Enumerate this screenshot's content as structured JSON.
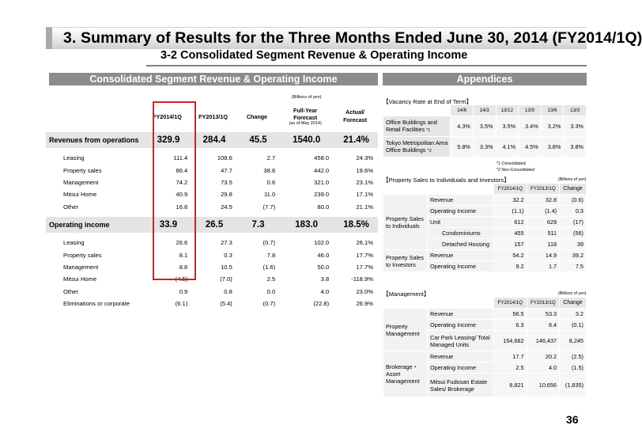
{
  "title": "3. Summary of Results for the Three Months Ended June 30, 2014 (FY2014/1Q)",
  "subtitle": "3-2  Consolidated Segment Revenue & Operating Income",
  "left": {
    "header": "Consolidated Segment Revenue & Operating Income",
    "unit": "(Billions of yen)",
    "columns": [
      "FY2014/1Q",
      "FY2013/1Q",
      "Change",
      "Full-Year Forecast",
      "(as of May 2014)",
      "Actual/ Forecast"
    ],
    "rows": [
      {
        "label": "Revenues from operations",
        "v": [
          "329.9",
          "284.4",
          "45.5",
          "1540.0",
          "21.4%"
        ]
      },
      {
        "label": "Leasing",
        "v": [
          "111.4",
          "108.6",
          "2.7",
          "458.0",
          "24.3%"
        ]
      },
      {
        "label": "Property sales",
        "v": [
          "86.4",
          "47.7",
          "38.6",
          "442.0",
          "19.6%"
        ]
      },
      {
        "label": "Management",
        "v": [
          "74.2",
          "73.5",
          "0.6",
          "321.0",
          "23.1%"
        ]
      },
      {
        "label": "Mitsui Home",
        "v": [
          "40.9",
          "29.8",
          "11.0",
          "239.0",
          "17.1%"
        ]
      },
      {
        "label": "Other",
        "v": [
          "16.8",
          "24.5",
          "(7.7)",
          "80.0",
          "21.1%"
        ]
      },
      {
        "label": "Operating income",
        "v": [
          "33.9",
          "26.5",
          "7.3",
          "183.0",
          "18.5%"
        ]
      },
      {
        "label": "Leasing",
        "v": [
          "26.6",
          "27.3",
          "(0.7)",
          "102.0",
          "26.1%"
        ]
      },
      {
        "label": "Property sales",
        "v": [
          "8.1",
          "0.3",
          "7.8",
          "46.0",
          "17.7%"
        ]
      },
      {
        "label": "Management",
        "v": [
          "8.8",
          "10.5",
          "(1.6)",
          "50.0",
          "17.7%"
        ]
      },
      {
        "label": "Mitsui Home",
        "v": [
          "(4.5)",
          "(7.0)",
          "2.5",
          "3.8",
          "-118.9%"
        ]
      },
      {
        "label": "Other",
        "v": [
          "0.9",
          "0.8",
          "0.0",
          "4.0",
          "23.0%"
        ]
      },
      {
        "label": "Eliminations or corporate",
        "v": [
          "(6.1)",
          "(5.4)",
          "(0.7)",
          "(22.8)",
          "26.9%"
        ]
      }
    ]
  },
  "right": {
    "header": "Appendices",
    "vacancy": {
      "title": "【Vacancy Rate at End of Term】",
      "cols": [
        "14/6",
        "14/3",
        "13/12",
        "13/9",
        "13/6",
        "13/3"
      ],
      "rows": [
        {
          "label1": "Office Buildings and",
          "label2": "Retail Facilities",
          "note": "*1",
          "v": [
            "4.3%",
            "3.5%",
            "3.5%",
            "3.4%",
            "3.2%",
            "3.3%"
          ]
        },
        {
          "label1": "Tokyo Metropolitan Area",
          "label2": "Office Buildings",
          "note": "*2",
          "v": [
            "5.8%",
            "3.3%",
            "4.1%",
            "4.5%",
            "3.8%",
            "3.8%"
          ]
        }
      ],
      "note1": "*1 Consolidated",
      "note2": "*2 Non-Consolidated"
    },
    "property": {
      "title": "【Property Sales to Individuials and Investors】",
      "unit": "(Billions of yen)",
      "cols": [
        "FY2014/1Q",
        "FY2013/1Q",
        "Change"
      ],
      "group1": "Property Sales to Individuals",
      "group2": "Property Sales to Investors",
      "rows": [
        {
          "label": "Revenue",
          "v": [
            "32.2",
            "32.8",
            "(0.6)"
          ]
        },
        {
          "label": "Operating Income",
          "v": [
            "(1.1)",
            "(1.4)",
            "0.3"
          ]
        },
        {
          "label": "Unit",
          "v": [
            "612",
            "629",
            "(17)"
          ]
        },
        {
          "label": "Condominiums",
          "v": [
            "455",
            "511",
            "(56)"
          ]
        },
        {
          "label": "Detached Housing",
          "v": [
            "157",
            "118",
            "39"
          ]
        },
        {
          "label": "Revenue",
          "v": [
            "54.2",
            "14.9",
            "39.2"
          ]
        },
        {
          "label": "Operating Income",
          "v": [
            "9.2",
            "1.7",
            "7.5"
          ]
        }
      ]
    },
    "management": {
      "title": "【Management】",
      "unit": "(Billions of yen)",
      "cols": [
        "FY2014/1Q",
        "FY2013/1Q",
        "Change"
      ],
      "group1": "Property Management",
      "group2": "Brokerage・Asset Management",
      "rows": [
        {
          "label": "Revenue",
          "v": [
            "56.5",
            "53.3",
            "3.2"
          ]
        },
        {
          "label": "Operating Income",
          "v": [
            "6.3",
            "6.4",
            "(0.1)"
          ]
        },
        {
          "label": "Car Park Leasing/ Total Managed Units",
          "v": [
            "154,682",
            "146,437",
            "8,245"
          ]
        },
        {
          "label": "Revenue",
          "v": [
            "17.7",
            "20.2",
            "(2.5)"
          ]
        },
        {
          "label": "Operating Income",
          "v": [
            "2.5",
            "4.0",
            "(1.5)"
          ]
        },
        {
          "label": "Mitsui Fudosan Estate Sales/ Brokerage",
          "v": [
            "8,821",
            "10,656",
            "(1,835)"
          ]
        }
      ]
    }
  },
  "page_number": "36"
}
